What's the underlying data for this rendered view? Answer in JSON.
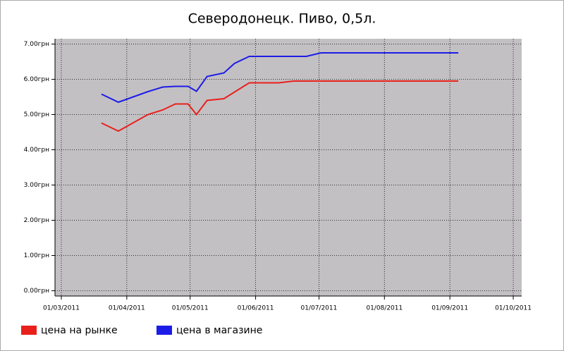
{
  "chart_data": {
    "type": "line",
    "title": "Северодонецк. Пиво, 0,5л.",
    "series": [
      {
        "name": "цена на рынке",
        "color": "#e8201c",
        "x": [
          "2011-03-20",
          "2011-03-28",
          "2011-04-11",
          "2011-04-18",
          "2011-04-24",
          "2011-04-30",
          "2011-05-04",
          "2011-05-09",
          "2011-05-17",
          "2011-05-29",
          "2011-06-12",
          "2011-06-19",
          "2011-09-05"
        ],
        "values": [
          4.76,
          4.53,
          5.0,
          5.13,
          5.3,
          5.3,
          5.0,
          5.4,
          5.45,
          5.9,
          5.9,
          5.95,
          5.95
        ]
      },
      {
        "name": "цена в магазине",
        "color": "#1c1ce8",
        "x": [
          "2011-03-20",
          "2011-03-28",
          "2011-04-11",
          "2011-04-18",
          "2011-04-24",
          "2011-04-30",
          "2011-05-04",
          "2011-05-09",
          "2011-05-17",
          "2011-05-22",
          "2011-05-29",
          "2011-06-25",
          "2011-07-02",
          "2011-09-05"
        ],
        "values": [
          5.58,
          5.35,
          5.65,
          5.78,
          5.8,
          5.8,
          5.66,
          6.08,
          6.18,
          6.45,
          6.65,
          6.65,
          6.75,
          6.75
        ]
      }
    ],
    "xlim": [
      "2011-02-26",
      "2011-10-05"
    ],
    "xticks": [
      {
        "value": "2011-03-01",
        "label": "01/03/2011"
      },
      {
        "value": "2011-04-01",
        "label": "01/04/2011"
      },
      {
        "value": "2011-05-01",
        "label": "01/05/2011"
      },
      {
        "value": "2011-06-01",
        "label": "01/06/2011"
      },
      {
        "value": "2011-07-01",
        "label": "01/07/2011"
      },
      {
        "value": "2011-08-01",
        "label": "01/08/2011"
      },
      {
        "value": "2011-09-01",
        "label": "01/09/2011"
      },
      {
        "value": "2011-10-01",
        "label": "01/10/2011"
      }
    ],
    "ylim": [
      -0.15,
      7.15
    ],
    "yticks": [
      {
        "value": 0,
        "label": "0.00грн"
      },
      {
        "value": 1,
        "label": "1.00грн"
      },
      {
        "value": 2,
        "label": "2.00грн"
      },
      {
        "value": 3,
        "label": "3.00грн"
      },
      {
        "value": 4,
        "label": "4.00грн"
      },
      {
        "value": 5,
        "label": "5.00грн"
      },
      {
        "value": 6,
        "label": "6.00грн"
      },
      {
        "value": 7,
        "label": "7.00грн"
      }
    ],
    "grid": true
  }
}
